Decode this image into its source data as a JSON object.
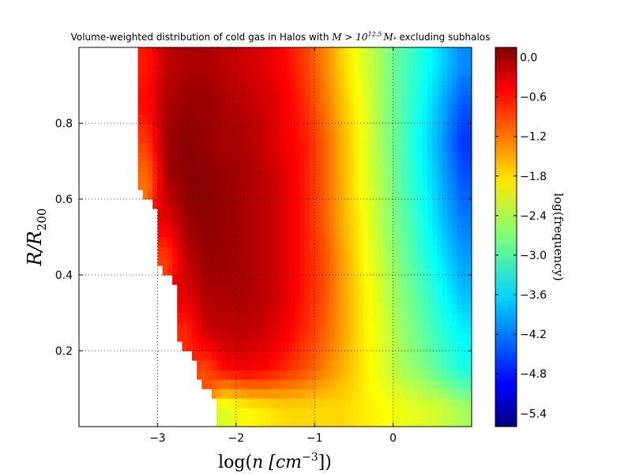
{
  "chart_data": {
    "type": "heatmap",
    "title": {
      "prefix": "Volume-weighted distribution of cold gas in Halos with ",
      "math": "M > 10^{12.5} M_*",
      "math_display": "M > 10",
      "math_exp": "12.5",
      "math_tail": "M",
      "math_sub": "*",
      "suffix": " excluding subhalos"
    },
    "xlabel": {
      "pre": "log(",
      "var": "n",
      "unit": " [cm",
      "unit_exp": "−3",
      "post": "])"
    },
    "ylabel": {
      "var": "R/R",
      "sub": "200"
    },
    "colorbar_label": "log(frequency)",
    "xlim": [
      -4.0,
      1.0
    ],
    "ylim": [
      0.0,
      1.0
    ],
    "x_ticks": [
      -3,
      -2,
      -1,
      0
    ],
    "x_tick_labels": [
      "−3",
      "−2",
      "−1",
      "0"
    ],
    "y_ticks": [
      0.2,
      0.4,
      0.6,
      0.8
    ],
    "y_tick_labels": [
      "0.2",
      "0.4",
      "0.6",
      "0.8"
    ],
    "colorbar_range": [
      -5.6,
      0.15
    ],
    "colorbar_ticks": [
      0.0,
      -0.6,
      -1.2,
      -1.8,
      -2.4,
      -3.0,
      -3.6,
      -4.2,
      -4.8,
      -5.4
    ],
    "colorbar_tick_labels": [
      "0.0",
      "−0.6",
      "−1.2",
      "−1.8",
      "−2.4",
      "−3.0",
      "−3.6",
      "−4.2",
      "−4.8",
      "−5.4"
    ],
    "colormap": "jet",
    "grid": true,
    "z_grid": {
      "x_start": -4.0,
      "x_step": 0.25,
      "y_start": 0.0,
      "y_step": 0.1,
      "rows_bottom_to_top": [
        [
          null,
          null,
          null,
          null,
          null,
          null,
          null,
          -2.2,
          -2.0,
          -1.9,
          -1.8,
          -1.8,
          -1.8,
          -1.8,
          -1.9,
          -2.0,
          -2.1,
          -2.2,
          -2.3,
          -2.5
        ],
        [
          null,
          null,
          null,
          null,
          null,
          null,
          -1.0,
          -0.6,
          -0.5,
          -0.6,
          -0.8,
          -1.0,
          -1.3,
          -1.6,
          -1.9,
          -2.2,
          -2.5,
          -2.7,
          -3.0,
          -3.3
        ],
        [
          null,
          null,
          null,
          null,
          null,
          -0.8,
          -0.3,
          -0.2,
          -0.2,
          -0.3,
          -0.5,
          -0.8,
          -1.1,
          -1.5,
          -1.9,
          -2.2,
          -2.6,
          -2.9,
          -3.2,
          -3.5
        ],
        [
          null,
          null,
          null,
          null,
          null,
          -0.4,
          -0.1,
          -0.1,
          -0.1,
          -0.2,
          -0.4,
          -0.7,
          -1.0,
          -1.5,
          -1.9,
          -2.3,
          -2.7,
          -3.0,
          -3.4,
          -3.8
        ],
        [
          null,
          null,
          null,
          null,
          -0.9,
          -0.2,
          0.0,
          0.0,
          -0.1,
          -0.2,
          -0.4,
          -0.7,
          -1.0,
          -1.5,
          -2.0,
          -2.4,
          -2.8,
          -3.2,
          -3.6,
          -4.0
        ],
        [
          null,
          null,
          null,
          null,
          -0.4,
          0.0,
          0.1,
          0.0,
          -0.1,
          -0.2,
          -0.4,
          -0.7,
          -1.1,
          -1.6,
          -2.0,
          -2.5,
          -2.9,
          -3.3,
          -3.8,
          -4.2
        ],
        [
          null,
          null,
          null,
          -1.2,
          -0.1,
          0.1,
          0.1,
          0.0,
          -0.1,
          -0.2,
          -0.4,
          -0.7,
          -1.1,
          -1.6,
          -2.1,
          -2.5,
          -3.0,
          -3.4,
          -3.9,
          -4.4
        ],
        [
          null,
          null,
          null,
          -0.9,
          0.0,
          0.1,
          0.0,
          -0.1,
          -0.1,
          -0.3,
          -0.5,
          -0.7,
          -1.1,
          -1.6,
          -2.1,
          -2.6,
          -3.0,
          -3.5,
          -4.0,
          -4.6
        ],
        [
          null,
          null,
          null,
          -0.6,
          -0.1,
          0.0,
          0.0,
          -0.1,
          -0.2,
          -0.3,
          -0.5,
          -0.8,
          -1.2,
          -1.7,
          -2.1,
          -2.6,
          -3.0,
          -3.4,
          -3.9,
          -4.4
        ],
        [
          null,
          null,
          null,
          -0.7,
          -0.2,
          -0.1,
          -0.1,
          -0.2,
          -0.3,
          -0.4,
          -0.6,
          -0.9,
          -1.3,
          -1.8,
          -2.2,
          -2.6,
          -3.0,
          -3.3,
          -3.7,
          -4.1
        ]
      ]
    }
  }
}
